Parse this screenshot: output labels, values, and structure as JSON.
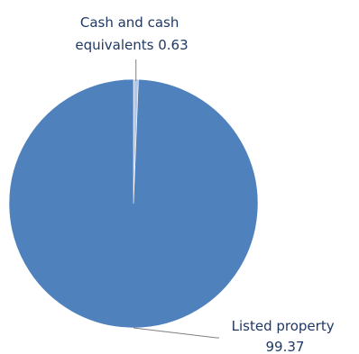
{
  "chart_data": {
    "type": "pie",
    "title": "",
    "slices": [
      {
        "label_lines": [
          "Cash and cash",
          "equivalents 0.63"
        ],
        "value": 0.63,
        "color": "#b4c7e7"
      },
      {
        "label_lines": [
          "Listed property",
          "99.37"
        ],
        "value": 99.37,
        "color": "#4f81bd"
      }
    ],
    "leader_line_color": "#7f7f7f",
    "label_color": "#1f3864",
    "legend": "none"
  }
}
